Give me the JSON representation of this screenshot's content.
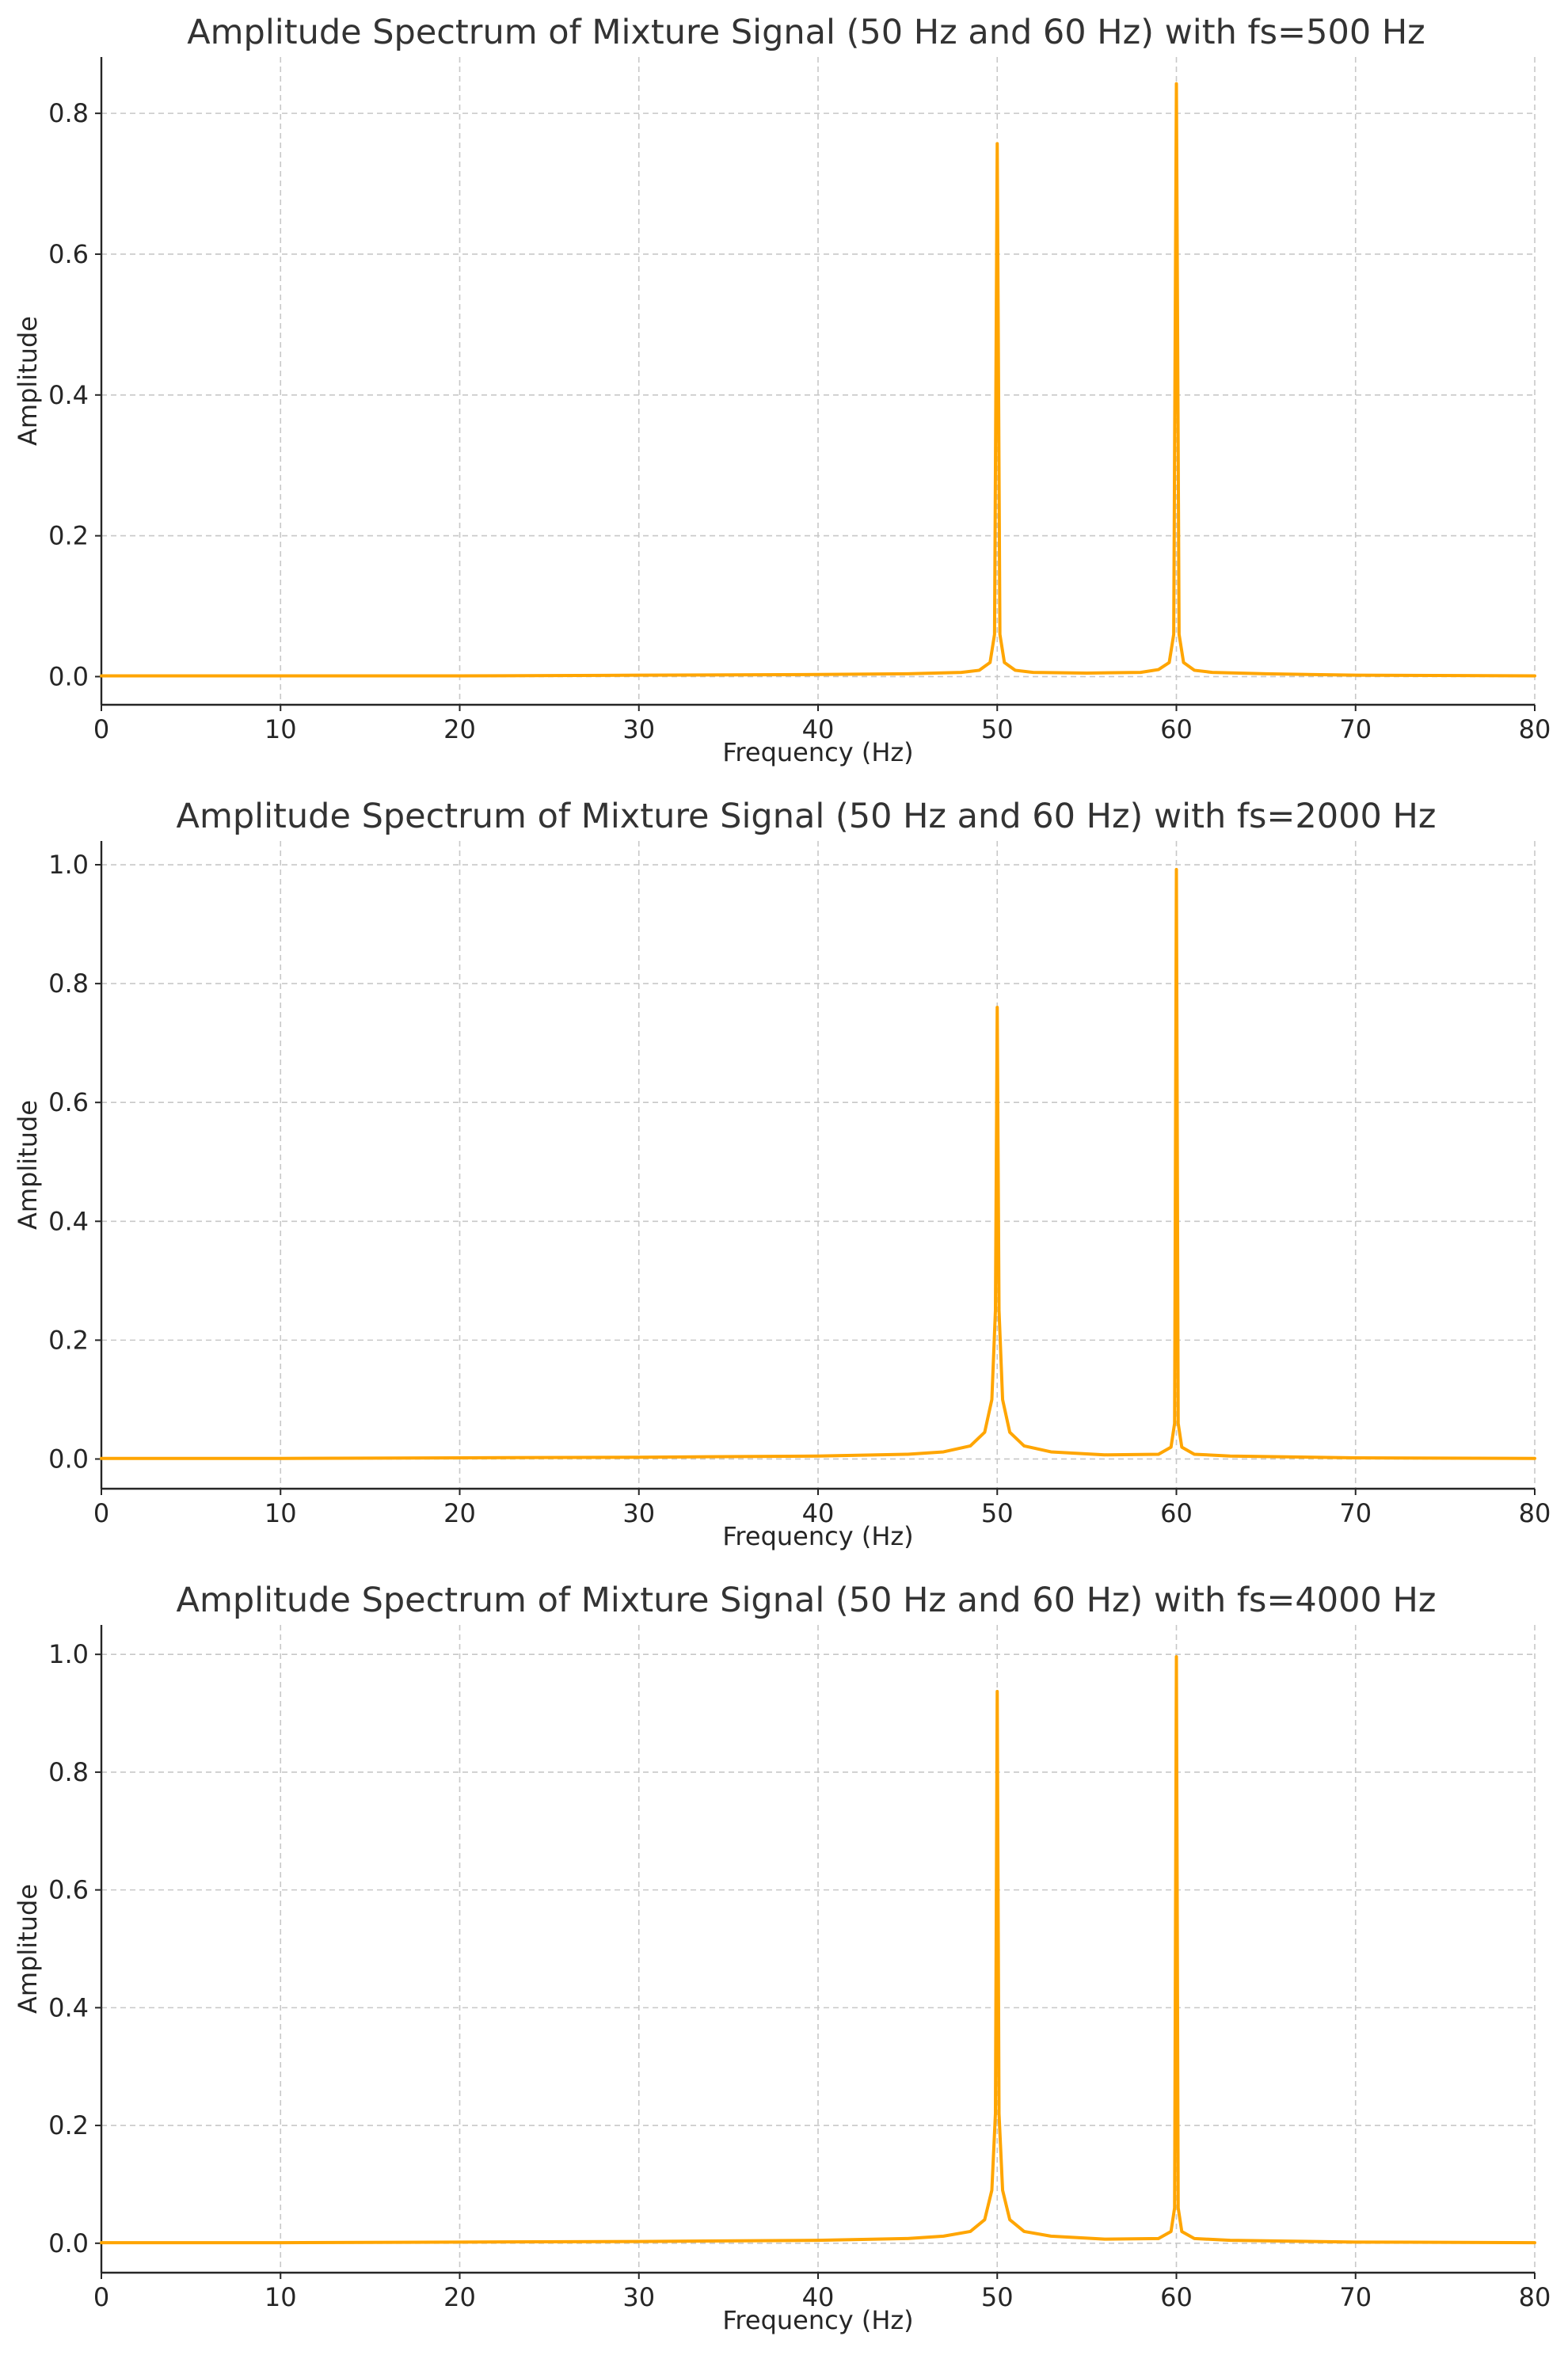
{
  "colors": {
    "series": "#FFA500",
    "grid": "#c8c8c8",
    "axis": "#262626",
    "title": "#333333"
  },
  "chart_data": [
    {
      "type": "line",
      "title": "Amplitude Spectrum of Mixture Signal (50 Hz and 60 Hz) with fs=500 Hz",
      "xlabel": "Frequency (Hz)",
      "ylabel": "Amplitude",
      "xlim": [
        0,
        80
      ],
      "ylim": [
        -0.04,
        0.88
      ],
      "xticks": [
        0,
        10,
        20,
        30,
        40,
        50,
        60,
        70,
        80
      ],
      "yticks": [
        0.0,
        0.2,
        0.4,
        0.6,
        0.8
      ],
      "ytick_labels": [
        "0.0",
        "0.2",
        "0.4",
        "0.6",
        "0.8"
      ],
      "grid": true,
      "series": [
        {
          "x": [
            0,
            10,
            20,
            30,
            40,
            45,
            48,
            49,
            49.6,
            49.85,
            50,
            50.15,
            50.4,
            51,
            52,
            55,
            58,
            59,
            59.6,
            59.85,
            60,
            60.15,
            60.4,
            61,
            62,
            65,
            70,
            80
          ],
          "y": [
            0.001,
            0.001,
            0.001,
            0.002,
            0.003,
            0.004,
            0.006,
            0.009,
            0.02,
            0.06,
            0.757,
            0.06,
            0.02,
            0.009,
            0.006,
            0.005,
            0.006,
            0.01,
            0.02,
            0.06,
            0.842,
            0.06,
            0.02,
            0.009,
            0.006,
            0.004,
            0.002,
            0.001
          ]
        }
      ]
    },
    {
      "type": "line",
      "title": "Amplitude Spectrum of Mixture Signal (50 Hz and 60 Hz) with fs=2000 Hz",
      "xlabel": "Frequency (Hz)",
      "ylabel": "Amplitude",
      "xlim": [
        0,
        80
      ],
      "ylim": [
        -0.05,
        1.04
      ],
      "xticks": [
        0,
        10,
        20,
        30,
        40,
        50,
        60,
        70,
        80
      ],
      "yticks": [
        0.0,
        0.2,
        0.4,
        0.6,
        0.8,
        1.0
      ],
      "ytick_labels": [
        "0.0",
        "0.2",
        "0.4",
        "0.6",
        "0.8",
        "1.0"
      ],
      "grid": true,
      "series": [
        {
          "x": [
            0,
            10,
            20,
            30,
            40,
            45,
            47,
            48.5,
            49.3,
            49.7,
            49.9,
            50,
            50.1,
            50.3,
            50.7,
            51.5,
            53,
            56,
            59,
            59.7,
            59.9,
            60,
            60.1,
            60.3,
            61,
            63,
            70,
            80
          ],
          "y": [
            0.001,
            0.001,
            0.002,
            0.003,
            0.005,
            0.008,
            0.012,
            0.022,
            0.045,
            0.1,
            0.25,
            0.76,
            0.25,
            0.1,
            0.045,
            0.022,
            0.012,
            0.007,
            0.008,
            0.02,
            0.06,
            0.992,
            0.06,
            0.02,
            0.008,
            0.005,
            0.002,
            0.001
          ]
        }
      ]
    },
    {
      "type": "line",
      "title": "Amplitude Spectrum of Mixture Signal (50 Hz and 60 Hz) with fs=4000 Hz",
      "xlabel": "Frequency (Hz)",
      "ylabel": "Amplitude",
      "xlim": [
        0,
        80
      ],
      "ylim": [
        -0.05,
        1.05
      ],
      "xticks": [
        0,
        10,
        20,
        30,
        40,
        50,
        60,
        70,
        80
      ],
      "yticks": [
        0.0,
        0.2,
        0.4,
        0.6,
        0.8,
        1.0
      ],
      "ytick_labels": [
        "0.0",
        "0.2",
        "0.4",
        "0.6",
        "0.8",
        "1.0"
      ],
      "grid": true,
      "series": [
        {
          "x": [
            0,
            10,
            20,
            30,
            40,
            45,
            47,
            48.5,
            49.3,
            49.7,
            49.9,
            50,
            50.1,
            50.3,
            50.7,
            51.5,
            53,
            56,
            59,
            59.7,
            59.9,
            60,
            60.1,
            60.3,
            61,
            63,
            70,
            80
          ],
          "y": [
            0.001,
            0.001,
            0.002,
            0.003,
            0.005,
            0.008,
            0.012,
            0.02,
            0.04,
            0.09,
            0.22,
            0.937,
            0.22,
            0.09,
            0.04,
            0.02,
            0.012,
            0.007,
            0.008,
            0.02,
            0.06,
            0.996,
            0.06,
            0.02,
            0.008,
            0.005,
            0.002,
            0.001
          ]
        }
      ]
    }
  ]
}
